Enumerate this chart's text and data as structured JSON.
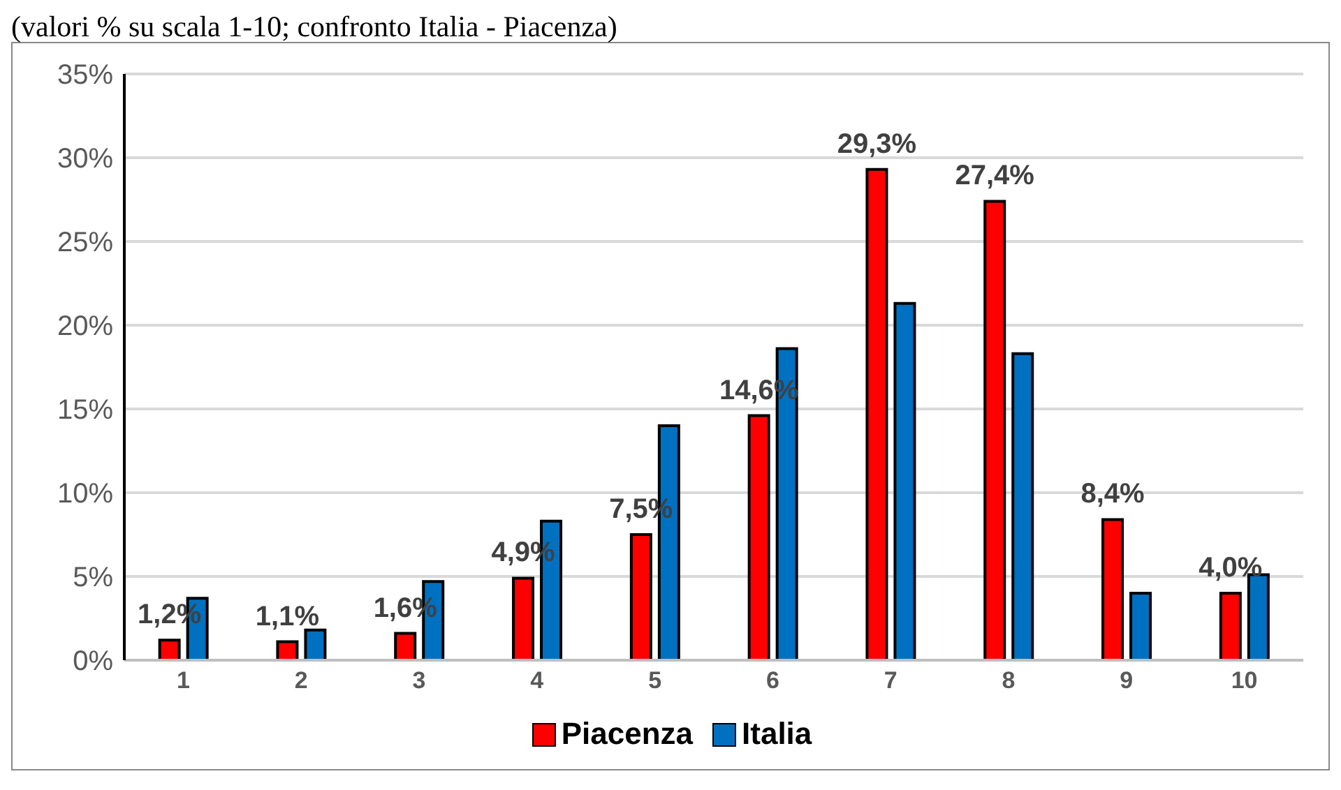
{
  "chart_data": {
    "type": "bar",
    "subtitle": "(valori % su scala 1-10; confronto Italia - Piacenza)",
    "categories": [
      "1",
      "2",
      "3",
      "4",
      "5",
      "6",
      "7",
      "8",
      "9",
      "10"
    ],
    "series": [
      {
        "name": "Piacenza",
        "color": "#ff0000",
        "values": [
          1.2,
          1.1,
          1.6,
          4.9,
          7.5,
          14.6,
          29.3,
          27.4,
          8.4,
          4.0
        ],
        "value_labels": [
          "1,2%",
          "1,1%",
          "1,6%",
          "4,9%",
          "7,5%",
          "14,6%",
          "29,3%",
          "27,4%",
          "8,4%",
          "4,0%"
        ]
      },
      {
        "name": "Italia",
        "color": "#0070c0",
        "values": [
          3.7,
          1.8,
          4.7,
          8.3,
          14.0,
          18.6,
          21.3,
          18.3,
          4.0,
          5.1
        ]
      }
    ],
    "ylim": [
      0,
      35
    ],
    "yticks": [
      {
        "value": 0,
        "label": "0%"
      },
      {
        "value": 5,
        "label": "5%"
      },
      {
        "value": 10,
        "label": "10%"
      },
      {
        "value": 15,
        "label": "15%"
      },
      {
        "value": 20,
        "label": "20%"
      },
      {
        "value": 25,
        "label": "25%"
      },
      {
        "value": 30,
        "label": "30%"
      },
      {
        "value": 35,
        "label": "35%"
      }
    ],
    "grid": "y",
    "legend": "bottom"
  }
}
